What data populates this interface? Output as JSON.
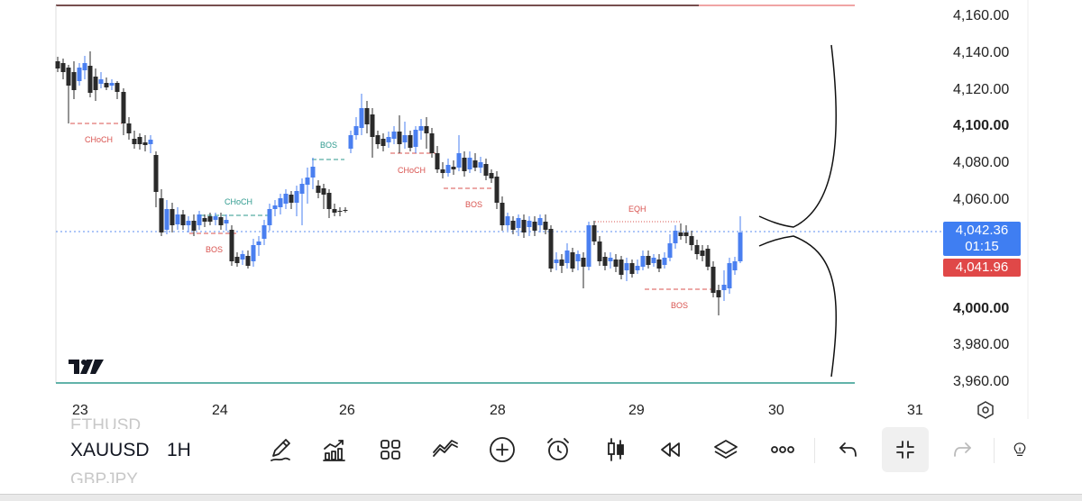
{
  "chart": {
    "symbol": "XAUUSD",
    "interval": "1H",
    "price_axis_labels": [
      "4,160.00",
      "4,140.00",
      "4,120.00",
      "4,100.00",
      "4,080.00",
      "4,060.00",
      "4,000.00",
      "3,980.00",
      "3,960.00"
    ],
    "time_axis_labels": [
      "23",
      "24",
      "26",
      "28",
      "29",
      "30",
      "31"
    ],
    "current_price": "4,042.36",
    "countdown": "01:15",
    "bid_price": "4,041.96",
    "annotations": [
      "CHoCH",
      "BOS",
      "CHoCH",
      "BOS",
      "CHoCH",
      "BOS",
      "EQH",
      "BOS"
    ],
    "faded_symbols": [
      "ETHUSD",
      "GBPJPY"
    ],
    "colors": {
      "bull": "#4a7ff0",
      "bear": "#2a2a2a",
      "bos_red": "#d9534f",
      "choch_teal": "#2e9a8e",
      "price_tag_blue": "#3f7ef2",
      "price_tag_red": "#e04848"
    }
  },
  "toolbar": {
    "icons": [
      "drawing-pen-icon",
      "indicators-icon",
      "layouts-grid-icon",
      "trend-icon",
      "add-circle-icon",
      "alarm-icon",
      "candles-icon",
      "replay-rewind-icon",
      "layers-icon",
      "more-icon",
      "undo-icon",
      "fullscreen-collapse-icon",
      "redo-icon",
      "bulb-icon"
    ]
  }
}
